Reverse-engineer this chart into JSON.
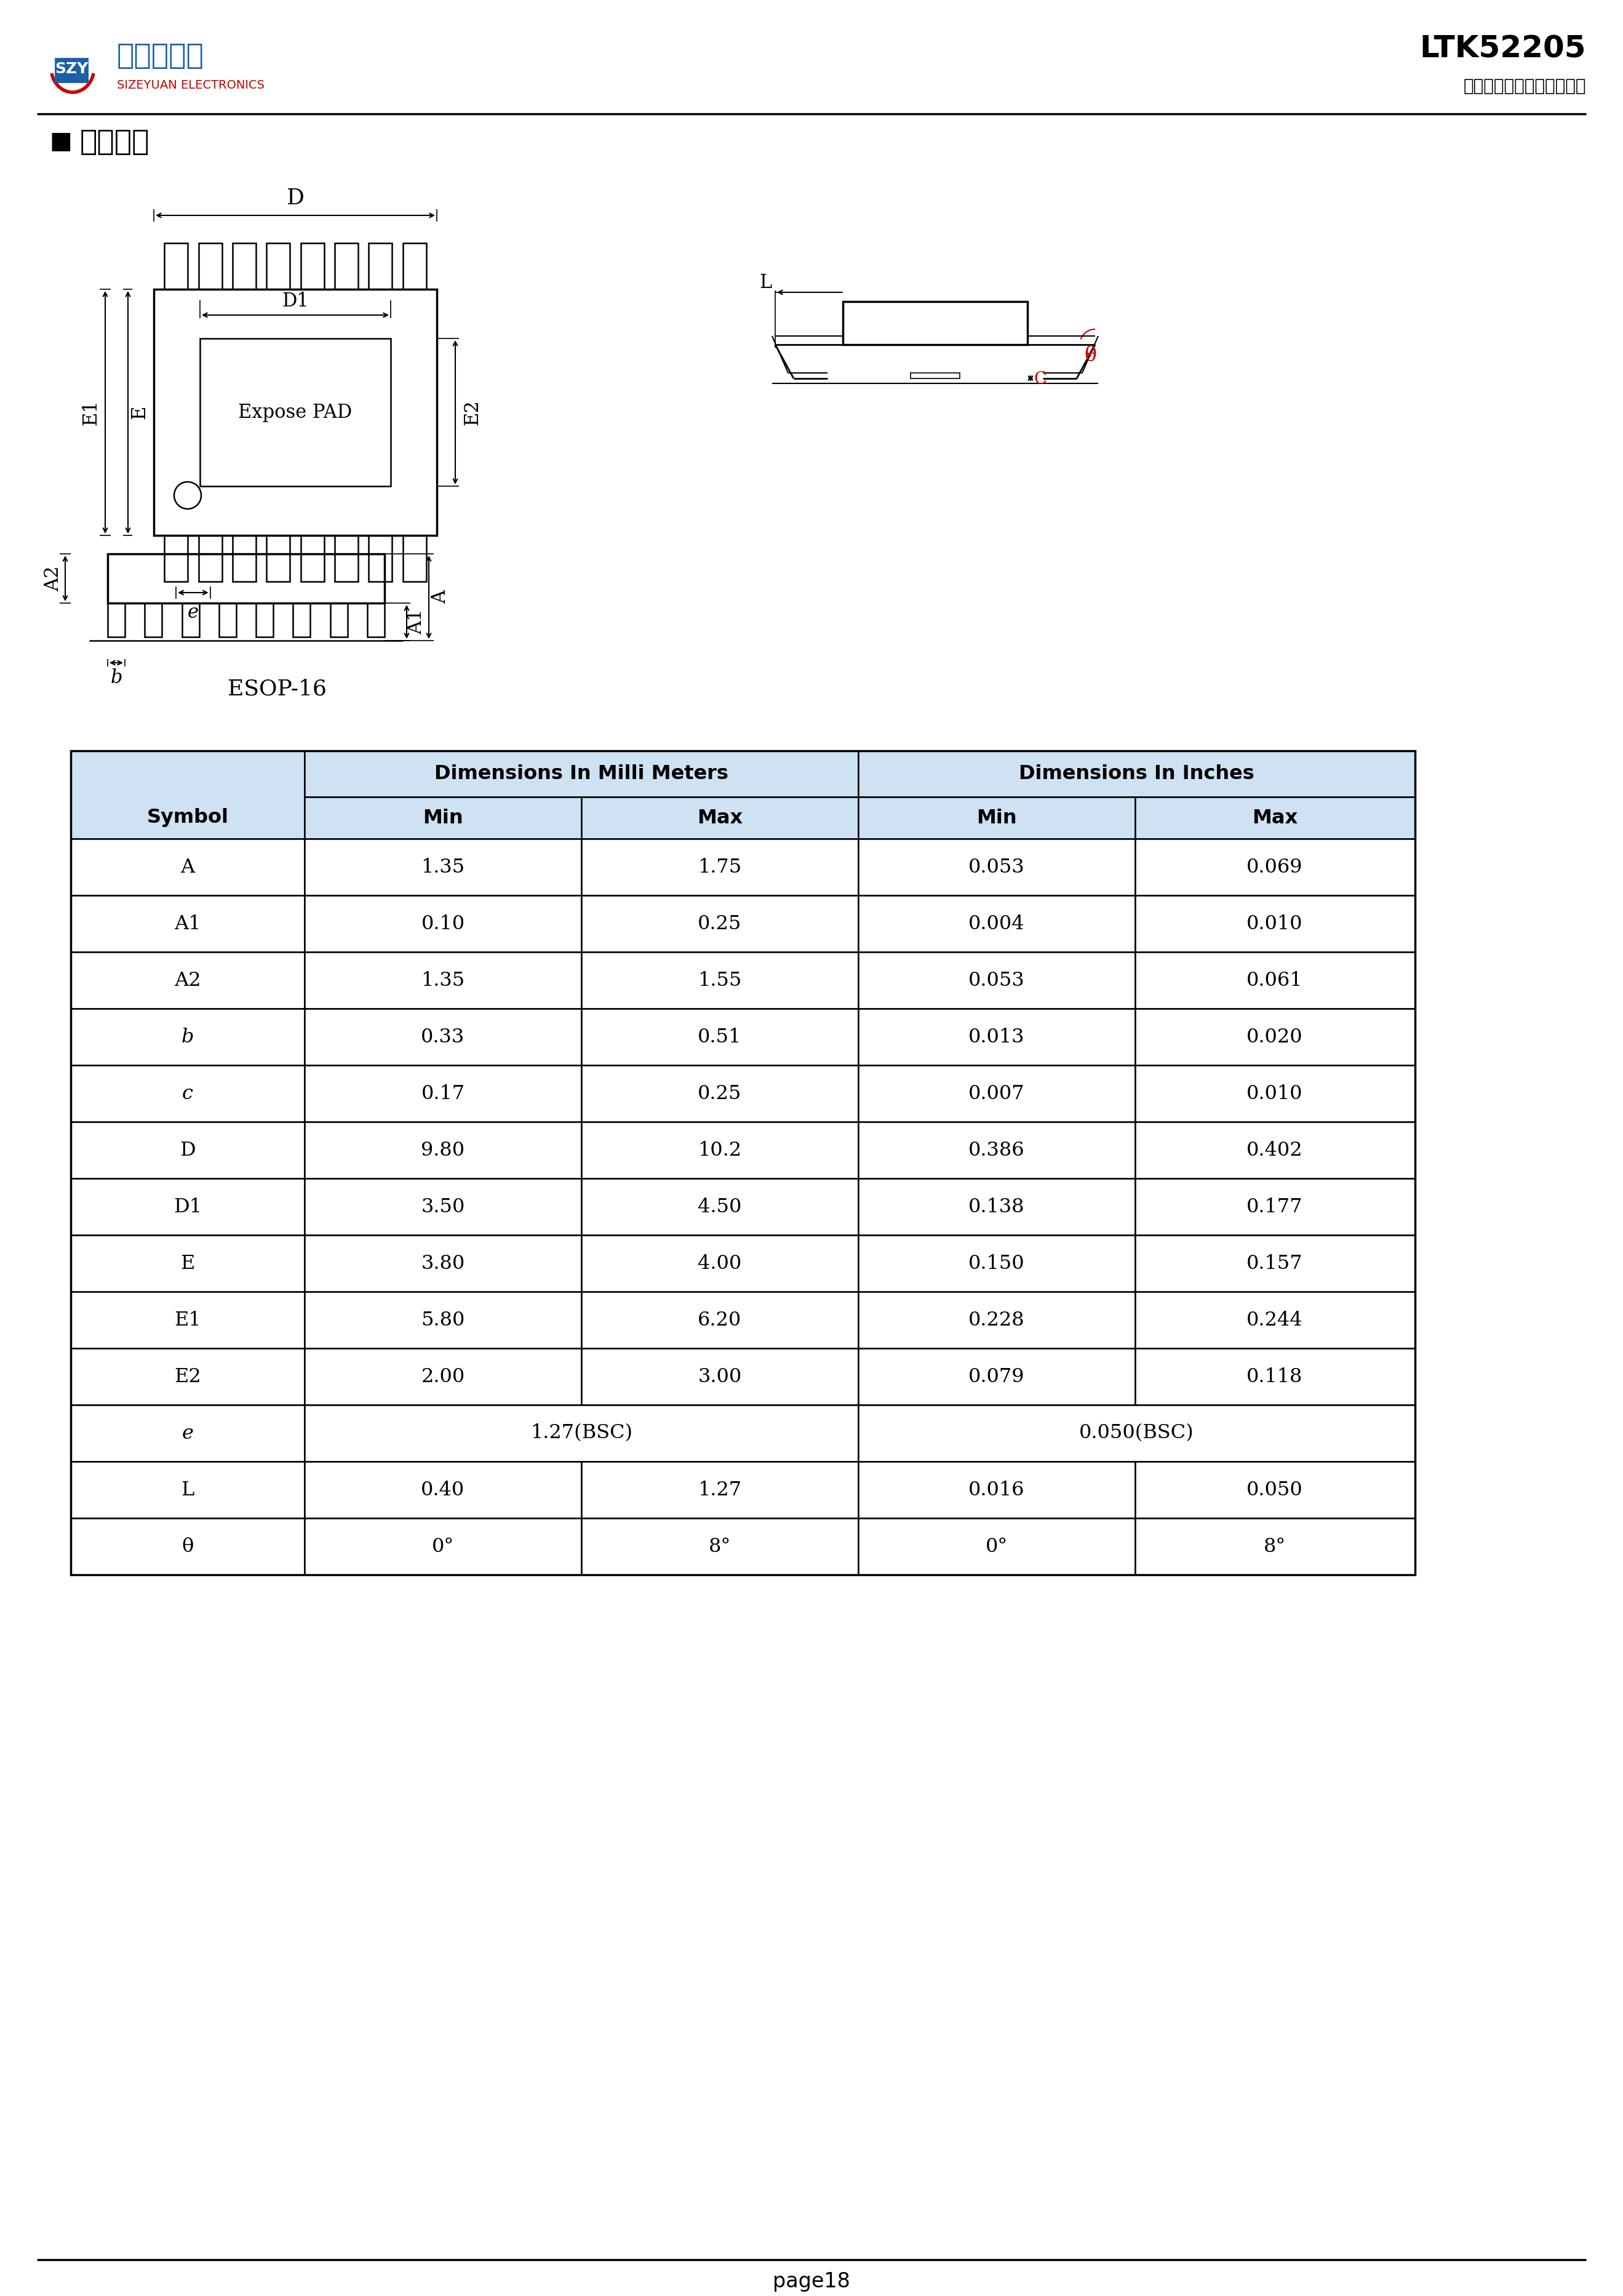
{
  "page_title": "LTK52205",
  "company_subtitle": "深圳市思泽远电子有限公司",
  "section_title": "封装信息",
  "package_label": "ESOP-16",
  "page_footer": "page18",
  "table_header_bg": "#cfe2f3",
  "table_rows": [
    [
      "A",
      "1.35",
      "1.75",
      "0.053",
      "0.069"
    ],
    [
      "A1",
      "0.10",
      "0.25",
      "0.004",
      "0.010"
    ],
    [
      "A2",
      "1.35",
      "1.55",
      "0.053",
      "0.061"
    ],
    [
      "b",
      "0.33",
      "0.51",
      "0.013",
      "0.020"
    ],
    [
      "c",
      "0.17",
      "0.25",
      "0.007",
      "0.010"
    ],
    [
      "D",
      "9.80",
      "10.2",
      "0.386",
      "0.402"
    ],
    [
      "D1",
      "3.50",
      "4.50",
      "0.138",
      "0.177"
    ],
    [
      "E",
      "3.80",
      "4.00",
      "0.150",
      "0.157"
    ],
    [
      "E1",
      "5.80",
      "6.20",
      "0.228",
      "0.244"
    ],
    [
      "E2",
      "2.00",
      "3.00",
      "0.079",
      "0.118"
    ],
    [
      "e",
      "1.27(BSC)",
      "",
      "0.050(BSC)",
      ""
    ],
    [
      "L",
      "0.40",
      "1.27",
      "0.016",
      "0.050"
    ],
    [
      "θ",
      "0°",
      "8°",
      "0°",
      "8°"
    ]
  ]
}
